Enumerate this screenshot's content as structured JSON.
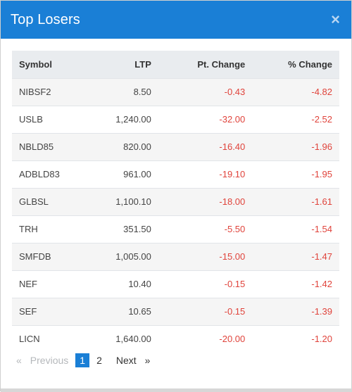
{
  "modal": {
    "title": "Top Losers",
    "close_label": "×"
  },
  "table": {
    "headers": [
      "Symbol",
      "LTP",
      "Pt. Change",
      "% Change"
    ],
    "rows": [
      {
        "symbol": "NIBSF2",
        "ltp": "8.50",
        "pt_change": "-0.43",
        "pct_change": "-4.82"
      },
      {
        "symbol": "USLB",
        "ltp": "1,240.00",
        "pt_change": "-32.00",
        "pct_change": "-2.52"
      },
      {
        "symbol": "NBLD85",
        "ltp": "820.00",
        "pt_change": "-16.40",
        "pct_change": "-1.96"
      },
      {
        "symbol": "ADBLD83",
        "ltp": "961.00",
        "pt_change": "-19.10",
        "pct_change": "-1.95"
      },
      {
        "symbol": "GLBSL",
        "ltp": "1,100.10",
        "pt_change": "-18.00",
        "pct_change": "-1.61"
      },
      {
        "symbol": "TRH",
        "ltp": "351.50",
        "pt_change": "-5.50",
        "pct_change": "-1.54"
      },
      {
        "symbol": "SMFDB",
        "ltp": "1,005.00",
        "pt_change": "-15.00",
        "pct_change": "-1.47"
      },
      {
        "symbol": "NEF",
        "ltp": "10.40",
        "pt_change": "-0.15",
        "pct_change": "-1.42"
      },
      {
        "symbol": "SEF",
        "ltp": "10.65",
        "pt_change": "-0.15",
        "pct_change": "-1.39"
      },
      {
        "symbol": "LICN",
        "ltp": "1,640.00",
        "pt_change": "-20.00",
        "pct_change": "-1.20"
      }
    ]
  },
  "pagination": {
    "prev_arrow": "«",
    "prev_label": "Previous",
    "pages": [
      "1",
      "2"
    ],
    "active_page": "1",
    "next_label": "Next",
    "next_arrow": "»"
  },
  "colors": {
    "header_bg": "#1a7fd6",
    "negative": "#e0433b"
  }
}
